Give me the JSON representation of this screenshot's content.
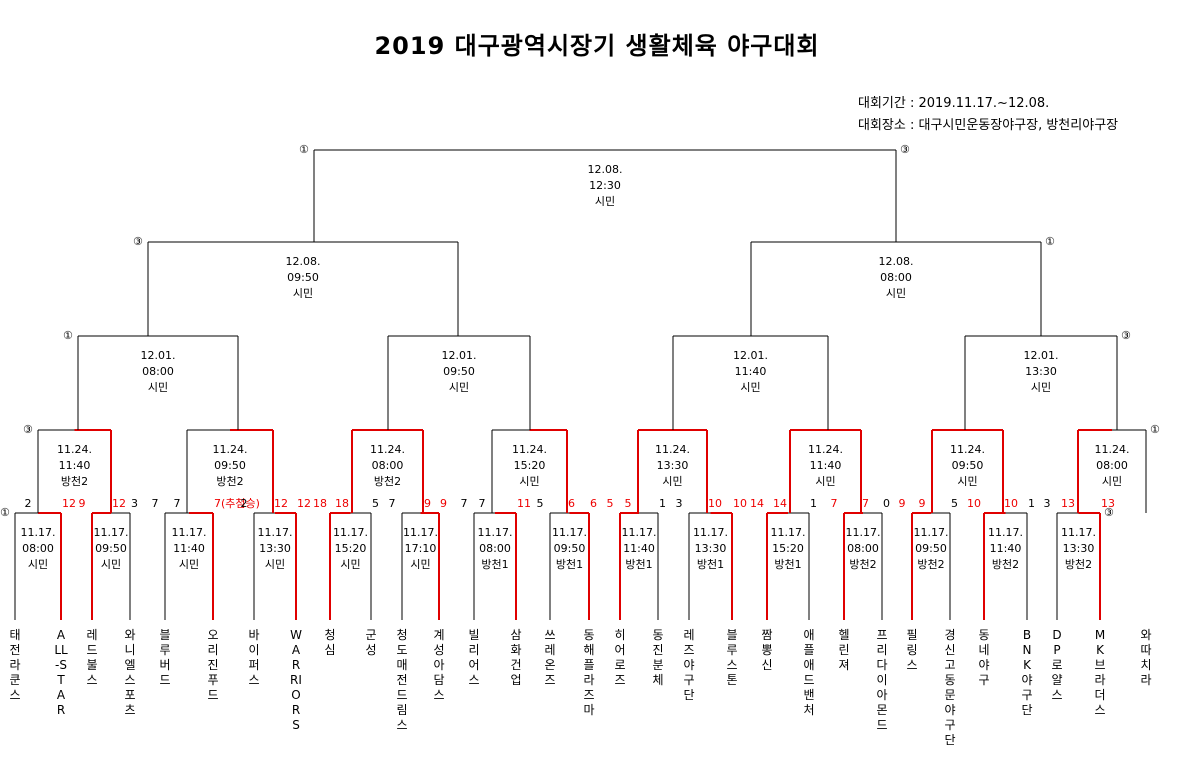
{
  "title": "2019 대구광역시장기 생활체육 야구대회",
  "period": "대회기간 : 2019.11.17.~12.08.",
  "venue": "대회장소 : 대구시민운동장야구장, 방천리야구장",
  "final": {
    "date": "12.08.",
    "time": "12:30",
    "place": "시민",
    "left_mark": "①",
    "right_mark": "③"
  },
  "semis": [
    {
      "date": "12.08.",
      "time": "09:50",
      "place": "시민",
      "left_mark": "③",
      "right_mark": ""
    },
    {
      "date": "12.08.",
      "time": "08:00",
      "place": "시민",
      "left_mark": "",
      "right_mark": "①"
    }
  ],
  "quarters": [
    {
      "date": "12.01.",
      "time": "08:00",
      "place": "시민",
      "left_mark": "①",
      "right_mark": ""
    },
    {
      "date": "12.01.",
      "time": "09:50",
      "place": "시민",
      "left_mark": "",
      "right_mark": ""
    },
    {
      "date": "12.01.",
      "time": "11:40",
      "place": "시민",
      "left_mark": "",
      "right_mark": ""
    },
    {
      "date": "12.01.",
      "time": "13:30",
      "place": "시민",
      "left_mark": "",
      "right_mark": "③"
    }
  ],
  "r16": [
    {
      "date": "11.24.",
      "time": "11:40",
      "place": "방천2",
      "left_mark": "③",
      "right_mark": "",
      "left_score": "2",
      "right_score": "12",
      "left_win": false,
      "right_win": true
    },
    {
      "date": "11.24.",
      "time": "09:50",
      "place": "방천2",
      "left_mark": "",
      "right_mark": "",
      "left_score": "7",
      "right_score": "12",
      "left_win": false,
      "right_win": true
    },
    {
      "date": "11.24.",
      "time": "08:00",
      "place": "방천2",
      "left_mark": "",
      "right_mark": "",
      "left_score": "18",
      "right_score": "9",
      "left_win": true,
      "right_win": true
    },
    {
      "date": "11.24.",
      "time": "15:20",
      "place": "시민",
      "left_mark": "",
      "right_mark": "",
      "left_score": "7",
      "right_score": "6",
      "left_win": false,
      "right_win": true
    },
    {
      "date": "11.24.",
      "time": "13:30",
      "place": "시민",
      "left_mark": "",
      "right_mark": "",
      "left_score": "5",
      "right_score": "10",
      "left_win": true,
      "right_win": true
    },
    {
      "date": "11.24.",
      "time": "11:40",
      "place": "시민",
      "left_mark": "",
      "right_mark": "",
      "left_score": "14",
      "right_score": "7",
      "left_win": true,
      "right_win": true
    },
    {
      "date": "11.24.",
      "time": "09:50",
      "place": "시민",
      "left_mark": "",
      "right_mark": "",
      "left_score": "9",
      "right_score": "10",
      "left_win": true,
      "right_win": true
    },
    {
      "date": "11.24.",
      "time": "08:00",
      "place": "시민",
      "left_mark": "",
      "right_mark": "①",
      "left_score": "13",
      "right_score": "",
      "left_win": true,
      "right_win": false
    }
  ],
  "r32": [
    {
      "date": "11.17.",
      "time": "08:00",
      "place": "시민",
      "left_mark": "①",
      "right_mark": "",
      "left_score": "",
      "right_score": "12",
      "left_win": false,
      "right_win": true
    },
    {
      "date": "11.17.",
      "time": "09:50",
      "place": "시민",
      "left_mark": "",
      "right_mark": "",
      "left_score": "9",
      "right_score": "3",
      "left_win": true,
      "right_win": false
    },
    {
      "date": "11.17.",
      "time": "11:40",
      "place": "시민",
      "left_mark": "",
      "right_mark": "",
      "left_score": "7",
      "right_score": "7(추첨승)",
      "left_win": false,
      "right_win": true
    },
    {
      "date": "11.17.",
      "time": "13:30",
      "place": "시민",
      "left_mark": "",
      "right_mark": "",
      "left_score": "2",
      "right_score": "12",
      "left_win": false,
      "right_win": true
    },
    {
      "date": "11.17.",
      "time": "15:20",
      "place": "시민",
      "left_mark": "",
      "right_mark": "",
      "left_score": "18",
      "right_score": "5",
      "left_win": true,
      "right_win": false
    },
    {
      "date": "11.17.",
      "time": "17:10",
      "place": "시민",
      "left_mark": "",
      "right_mark": "",
      "left_score": "7",
      "right_score": "9",
      "left_win": false,
      "right_win": true
    },
    {
      "date": "11.17.",
      "time": "08:00",
      "place": "방천1",
      "left_mark": "",
      "right_mark": "",
      "left_score": "7",
      "right_score": "11",
      "left_win": false,
      "right_win": true
    },
    {
      "date": "11.17.",
      "time": "09:50",
      "place": "방천1",
      "left_mark": "",
      "right_mark": "",
      "left_score": "5",
      "right_score": "6",
      "left_win": false,
      "right_win": true
    },
    {
      "date": "11.17.",
      "time": "11:40",
      "place": "방천1",
      "left_mark": "",
      "right_mark": "",
      "left_score": "5",
      "right_score": "1",
      "left_win": true,
      "right_win": false
    },
    {
      "date": "11.17.",
      "time": "13:30",
      "place": "방천1",
      "left_mark": "",
      "right_mark": "",
      "left_score": "3",
      "right_score": "10",
      "left_win": false,
      "right_win": true
    },
    {
      "date": "11.17.",
      "time": "15:20",
      "place": "방천1",
      "left_mark": "",
      "right_mark": "",
      "left_score": "14",
      "right_score": "1",
      "left_win": true,
      "right_win": false
    },
    {
      "date": "11.17.",
      "time": "08:00",
      "place": "방천2",
      "left_mark": "",
      "right_mark": "",
      "left_score": "7",
      "right_score": "0",
      "left_win": true,
      "right_win": false
    },
    {
      "date": "11.17.",
      "time": "09:50",
      "place": "방천2",
      "left_mark": "",
      "right_mark": "",
      "left_score": "9",
      "right_score": "5",
      "left_win": true,
      "right_win": false
    },
    {
      "date": "11.17.",
      "time": "11:40",
      "place": "방천2",
      "left_mark": "",
      "right_mark": "",
      "left_score": "10",
      "right_score": "1",
      "left_win": true,
      "right_win": false
    },
    {
      "date": "11.17.",
      "time": "13:30",
      "place": "방천2",
      "left_mark": "",
      "right_mark": "③",
      "left_score": "3",
      "right_score": "13",
      "left_win": false,
      "right_win": true
    }
  ],
  "teams": [
    {
      "name": "태전라쿤스",
      "win": false
    },
    {
      "name": "ALL-STAR",
      "win": true
    },
    {
      "name": "레드불스",
      "win": true
    },
    {
      "name": "와니엘스포츠",
      "win": false
    },
    {
      "name": "블루버드",
      "win": false
    },
    {
      "name": "오리진푸드",
      "win": true
    },
    {
      "name": "바이퍼스",
      "win": false
    },
    {
      "name": "WARRIORS",
      "win": true
    },
    {
      "name": "청심",
      "win": true
    },
    {
      "name": "군성",
      "win": false
    },
    {
      "name": "청도매전드림스",
      "win": false
    },
    {
      "name": "계성아담스",
      "win": true
    },
    {
      "name": "빌리어스",
      "win": false
    },
    {
      "name": "삼화건업",
      "win": true
    },
    {
      "name": "쓰레온즈",
      "win": false
    },
    {
      "name": "동해플라즈마",
      "win": true
    },
    {
      "name": "히어로즈",
      "win": true
    },
    {
      "name": "동진분체",
      "win": false
    },
    {
      "name": "레즈야구단",
      "win": false
    },
    {
      "name": "블루스톤",
      "win": true
    },
    {
      "name": "짬뽕신",
      "win": true
    },
    {
      "name": "애플애드밴처",
      "win": false
    },
    {
      "name": "헬린져",
      "win": true
    },
    {
      "name": "프리다이아몬드",
      "win": false
    },
    {
      "name": "필링스",
      "win": true
    },
    {
      "name": "경신고동문야구단",
      "win": false
    },
    {
      "name": "동네야구",
      "win": true
    },
    {
      "name": "BNK야구단",
      "win": false
    },
    {
      "name": "DP로얄스",
      "win": false
    },
    {
      "name": "MK브라더스",
      "win": true
    },
    {
      "name": "와따치라",
      "win": false
    }
  ],
  "colors": {
    "win": "#e00000",
    "line": "#000000"
  }
}
